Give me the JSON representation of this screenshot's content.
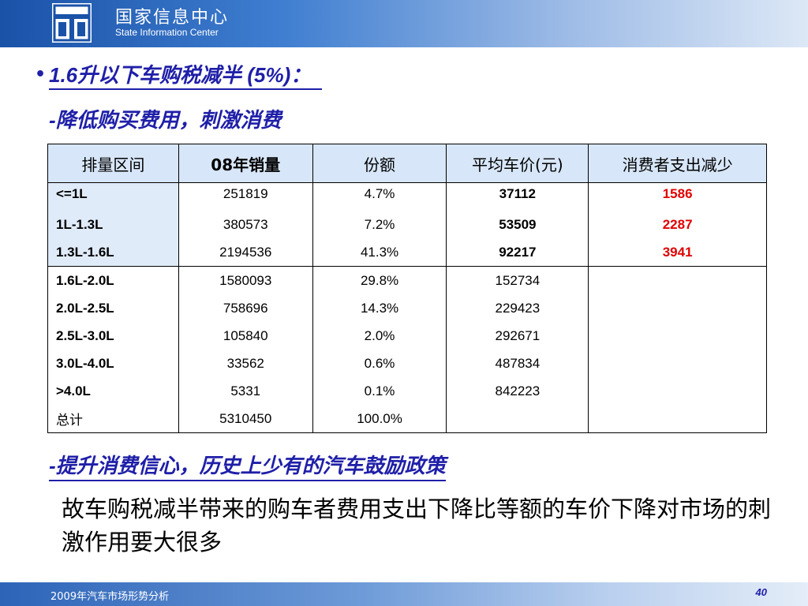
{
  "header": {
    "org_cn": "国家信息中心",
    "org_en": "State Information Center",
    "logo_icon": "state-information-center-logo"
  },
  "bullet": "•",
  "heading1": "1.6升以下车购税减半 (5%)：",
  "heading2": "-降低购买费用，刺激消费",
  "heading3": "-提升消费信心，历史上少有的汽车鼓励政策",
  "paragraph": "故车购税减半带来的购车者费用支出下降比等额的车价下降对市场的刺激作用要大很多",
  "table": {
    "headers": [
      "排量区间",
      "08年销量",
      "份额",
      "平均车价(元)",
      "消费者支出减少"
    ],
    "rows": [
      {
        "range": "<=1L",
        "sales": "251819",
        "share": "4.7%",
        "price": "37112",
        "reduce": "1586"
      },
      {
        "range": "1L-1.3L",
        "sales": "380573",
        "share": "7.2%",
        "price": "53509",
        "reduce": "2287"
      },
      {
        "range": "1.3L-1.6L",
        "sales": "2194536",
        "share": "41.3%",
        "price": "92217",
        "reduce": "3941"
      },
      {
        "range": "1.6L-2.0L",
        "sales": "1580093",
        "share": "29.8%",
        "price": "152734",
        "reduce": ""
      },
      {
        "range": "2.0L-2.5L",
        "sales": "758696",
        "share": "14.3%",
        "price": "229423",
        "reduce": ""
      },
      {
        "range": "2.5L-3.0L",
        "sales": "105840",
        "share": "2.0%",
        "price": "292671",
        "reduce": ""
      },
      {
        "range": "3.0L-4.0L",
        "sales": "33562",
        "share": "0.6%",
        "price": "487834",
        "reduce": ""
      },
      {
        "range": ">4.0L",
        "sales": "5331",
        "share": "0.1%",
        "price": "842223",
        "reduce": ""
      },
      {
        "range": "总计",
        "sales": "5310450",
        "share": "100.0%",
        "price": "",
        "reduce": ""
      }
    ]
  },
  "footer": {
    "text": "2009年汽车市场形势分析",
    "page": "40"
  },
  "colors": {
    "title_blue": "#1f1fa8",
    "header_blue": "#1a52a8",
    "table_header_bg": "#d7e6f8",
    "highlight_red": "#e00000"
  }
}
